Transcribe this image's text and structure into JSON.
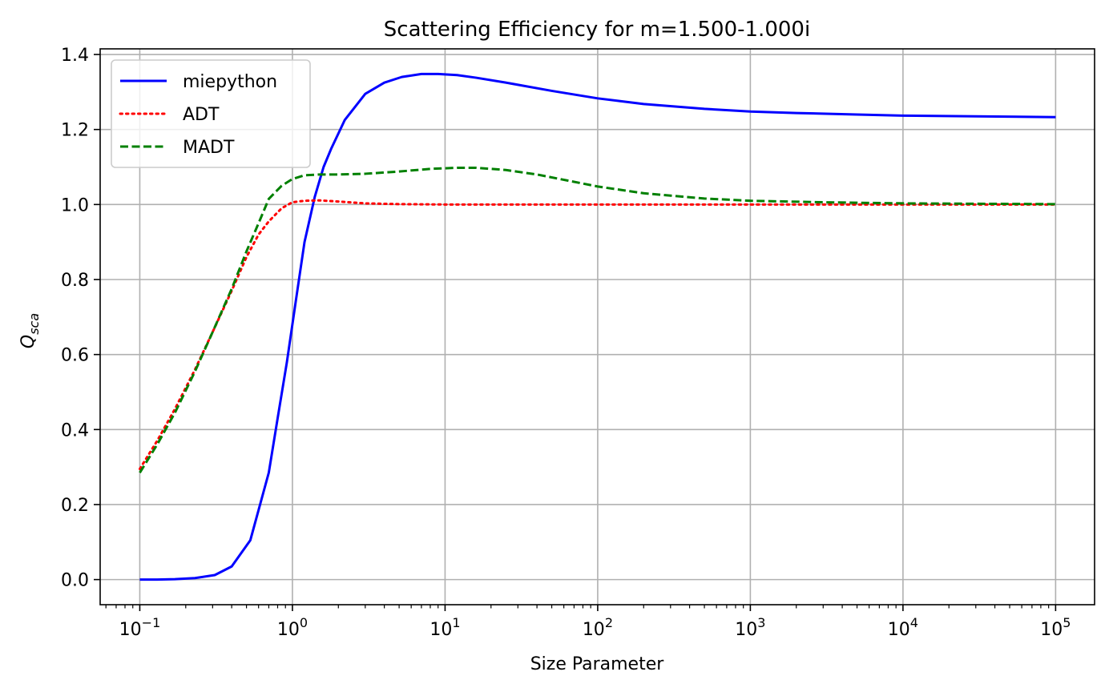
{
  "chart_data": {
    "type": "line",
    "title": "Scattering Efficiency for m=1.500-1.000i",
    "xlabel": "Size Parameter",
    "ylabel_main": "Q",
    "ylabel_sub": "sca",
    "xscale": "log",
    "xlim": [
      0.055,
      180000
    ],
    "ylim": [
      -0.067,
      1.415
    ],
    "grid": true,
    "legend_position": "top-left",
    "x_ticks": [
      {
        "value": 0.1,
        "base": "10",
        "exp": "−1"
      },
      {
        "value": 1,
        "base": "10",
        "exp": "0"
      },
      {
        "value": 10,
        "base": "10",
        "exp": "1"
      },
      {
        "value": 100,
        "base": "10",
        "exp": "2"
      },
      {
        "value": 1000,
        "base": "10",
        "exp": "3"
      },
      {
        "value": 10000,
        "base": "10",
        "exp": "4"
      },
      {
        "value": 100000,
        "base": "10",
        "exp": "5"
      }
    ],
    "y_ticks": [
      {
        "value": 0.0,
        "label": "0.0"
      },
      {
        "value": 0.2,
        "label": "0.2"
      },
      {
        "value": 0.4,
        "label": "0.4"
      },
      {
        "value": 0.6,
        "label": "0.6"
      },
      {
        "value": 0.8,
        "label": "0.8"
      },
      {
        "value": 1.0,
        "label": "1.0"
      },
      {
        "value": 1.2,
        "label": "1.2"
      },
      {
        "value": 1.4,
        "label": "1.4"
      }
    ],
    "series": [
      {
        "name": "miepython",
        "color": "#0000ff",
        "style": "solid",
        "x": [
          0.1,
          0.13,
          0.17,
          0.23,
          0.31,
          0.4,
          0.53,
          0.7,
          0.8,
          0.92,
          1.05,
          1.2,
          1.4,
          1.6,
          1.8,
          2.2,
          3.0,
          4.0,
          5.2,
          7.0,
          9.0,
          12,
          16,
          25,
          50,
          100,
          200,
          500,
          1000,
          2000,
          5000,
          10000,
          30000,
          100000
        ],
        "y": [
          0.0,
          0.0,
          0.001,
          0.004,
          0.012,
          0.035,
          0.105,
          0.285,
          0.43,
          0.58,
          0.74,
          0.9,
          1.02,
          1.1,
          1.15,
          1.225,
          1.295,
          1.325,
          1.34,
          1.348,
          1.348,
          1.345,
          1.338,
          1.325,
          1.303,
          1.283,
          1.268,
          1.255,
          1.248,
          1.244,
          1.24,
          1.237,
          1.235,
          1.233
        ]
      },
      {
        "name": "ADT",
        "color": "#ff0000",
        "style": "dotted",
        "x": [
          0.1,
          0.13,
          0.17,
          0.23,
          0.3,
          0.4,
          0.5,
          0.6,
          0.7,
          0.85,
          1.0,
          1.2,
          1.5,
          2.0,
          3.0,
          5.0,
          10,
          100,
          1000,
          10000,
          100000
        ],
        "y": [
          0.295,
          0.37,
          0.455,
          0.56,
          0.66,
          0.77,
          0.86,
          0.92,
          0.955,
          0.99,
          1.006,
          1.01,
          1.011,
          1.008,
          1.003,
          1.001,
          1.0,
          1.0,
          1.0,
          1.0,
          1.0
        ]
      },
      {
        "name": "MADT",
        "color": "#008000",
        "style": "dashed",
        "x": [
          0.1,
          0.13,
          0.17,
          0.23,
          0.3,
          0.4,
          0.5,
          0.6,
          0.7,
          0.85,
          1.0,
          1.2,
          1.5,
          2.0,
          3.0,
          5.0,
          8.0,
          12,
          16,
          25,
          40,
          100,
          200,
          500,
          1000,
          3000,
          10000,
          100000
        ],
        "y": [
          0.285,
          0.36,
          0.445,
          0.555,
          0.66,
          0.775,
          0.875,
          0.95,
          1.015,
          1.05,
          1.068,
          1.078,
          1.08,
          1.08,
          1.082,
          1.088,
          1.095,
          1.098,
          1.098,
          1.092,
          1.08,
          1.048,
          1.03,
          1.016,
          1.01,
          1.006,
          1.003,
          1.001
        ]
      }
    ]
  }
}
